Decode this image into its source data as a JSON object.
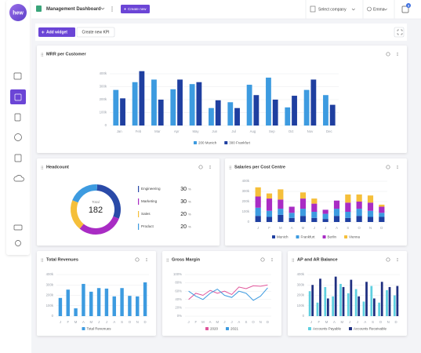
{
  "sidebar": {
    "logo": "hew"
  },
  "header": {
    "title": "Management Dashboard",
    "create_button": "Create new",
    "company_select": "Select company",
    "user": "Emma",
    "notifications": "3"
  },
  "toolbar": {
    "add_widget": "Add widget",
    "create_kpi": "Create new KPI"
  },
  "chart_data": [
    {
      "type": "bar",
      "title": "MRR per Customer",
      "categories": [
        "Jan",
        "Feb",
        "Mar",
        "Apr",
        "May",
        "Jun",
        "Jul",
        "Aug",
        "Sep",
        "Oct",
        "Nov",
        "Dec"
      ],
      "series": [
        {
          "name": "200 Munich",
          "color": "#3d9be0",
          "values": [
            275000,
            335000,
            355000,
            280000,
            320000,
            135000,
            180000,
            315000,
            370000,
            140000,
            275000,
            235000
          ]
        },
        {
          "name": "300 Frankfurt",
          "color": "#1f3fa0",
          "values": [
            210000,
            420000,
            200000,
            355000,
            335000,
            195000,
            135000,
            235000,
            200000,
            230000,
            355000,
            160000
          ]
        }
      ],
      "ylim": [
        0,
        400000
      ],
      "yticks": [
        0,
        {
          "value": 100000,
          "label": "100k"
        },
        {
          "value": 200000,
          "label": "200k"
        },
        {
          "value": 300000,
          "label": "300k"
        },
        {
          "value": 400000,
          "label": "400k"
        }
      ],
      "grid": true
    },
    {
      "type": "donut",
      "title": "Headcount",
      "total_label": "Total",
      "total": 182,
      "categories": [
        "Engineering",
        "Marketing",
        "Sales",
        "Product"
      ],
      "values": [
        30,
        30,
        20,
        20
      ],
      "unit": "%",
      "colors": [
        "#2a4aa8",
        "#a92cc4",
        "#f5bf3a",
        "#3d9be0"
      ]
    },
    {
      "type": "bar",
      "stacked": true,
      "title": "Salaries per Cost Centre",
      "categories": [
        "J",
        "F",
        "M",
        "A",
        "M",
        "J",
        "J",
        "A",
        "S",
        "O",
        "N",
        "D"
      ],
      "series": [
        {
          "name": "Munich",
          "color": "#1f3fa0",
          "values": [
            60000,
            50000,
            70000,
            40000,
            60000,
            40000,
            30000,
            60000,
            40000,
            60000,
            50000,
            50000
          ]
        },
        {
          "name": "Frankfurt",
          "color": "#3d9be0",
          "values": [
            80000,
            60000,
            60000,
            50000,
            70000,
            60000,
            50000,
            70000,
            60000,
            70000,
            60000,
            40000
          ]
        },
        {
          "name": "Berlin",
          "color": "#a92cc4",
          "values": [
            110000,
            120000,
            90000,
            60000,
            100000,
            80000,
            40000,
            80000,
            90000,
            70000,
            80000,
            60000
          ]
        },
        {
          "name": "Vienna",
          "color": "#f5bf3a",
          "values": [
            90000,
            50000,
            100000,
            0,
            60000,
            50000,
            0,
            0,
            80000,
            70000,
            70000,
            20000
          ]
        }
      ],
      "ylim": [
        0,
        400000
      ],
      "yticks": [
        0,
        {
          "value": 100000,
          "label": "100k"
        },
        {
          "value": 200000,
          "label": "200k"
        },
        {
          "value": 300000,
          "label": "300k"
        },
        {
          "value": 400000,
          "label": "400k"
        }
      ],
      "grid": true
    },
    {
      "type": "bar",
      "title": "Total Revenues",
      "categories": [
        "J",
        "F",
        "M",
        "A",
        "M",
        "J",
        "J",
        "A",
        "S",
        "O",
        "N",
        "D"
      ],
      "series": [
        {
          "name": "Total Revenues",
          "color": "#3d9be0",
          "values": [
            175000,
            255000,
            75000,
            310000,
            235000,
            270000,
            265000,
            190000,
            270000,
            195000,
            190000,
            325000
          ]
        }
      ],
      "ylim": [
        0,
        400000
      ],
      "yticks": [
        0,
        {
          "value": 100000,
          "label": "100k"
        },
        {
          "value": 200000,
          "label": "200k"
        },
        {
          "value": 300000,
          "label": "300k"
        },
        {
          "value": 400000,
          "label": "400k"
        }
      ],
      "grid": true
    },
    {
      "type": "line",
      "title": "Gross Margin",
      "categories": [
        "J",
        "F",
        "M",
        "A",
        "M",
        "J",
        "J",
        "A",
        "S",
        "O",
        "N",
        "D"
      ],
      "series": [
        {
          "name": "2020",
          "color": "#e0559a",
          "values": [
            40,
            55,
            50,
            62,
            55,
            60,
            52,
            70,
            66,
            73,
            72,
            75
          ]
        },
        {
          "name": "2021",
          "color": "#3d9be0",
          "values": [
            60,
            48,
            40,
            55,
            65,
            50,
            45,
            60,
            55,
            38,
            48,
            68
          ]
        }
      ],
      "ylim": [
        0,
        100
      ],
      "yticks": [
        {
          "value": 0,
          "label": "0%"
        },
        {
          "value": 20,
          "label": "20%"
        },
        {
          "value": 40,
          "label": "40%"
        },
        {
          "value": 60,
          "label": "60%"
        },
        {
          "value": 80,
          "label": "80%"
        },
        {
          "value": 100,
          "label": "100%"
        }
      ],
      "grid": true
    },
    {
      "type": "bar",
      "title": "AP and AR Balance",
      "categories": [
        "J",
        "F",
        "M",
        "A",
        "M",
        "J",
        "J",
        "A",
        "S",
        "O",
        "N",
        "D"
      ],
      "series": [
        {
          "name": "Accounts Payable",
          "color": "#5ed0e0",
          "values": [
            240000,
            130000,
            280000,
            190000,
            310000,
            220000,
            260000,
            140000,
            290000,
            130000,
            250000,
            200000
          ]
        },
        {
          "name": "Accounts Receivable",
          "color": "#1f2f80",
          "values": [
            300000,
            360000,
            170000,
            380000,
            280000,
            350000,
            190000,
            330000,
            170000,
            330000,
            280000,
            290000
          ]
        }
      ],
      "ylim": [
        0,
        400000
      ],
      "yticks": [
        0,
        {
          "value": 100000,
          "label": "100k"
        },
        {
          "value": 200000,
          "label": "200k"
        },
        {
          "value": 300000,
          "label": "300k"
        },
        {
          "value": 400000,
          "label": "400k"
        }
      ],
      "grid": true
    }
  ]
}
